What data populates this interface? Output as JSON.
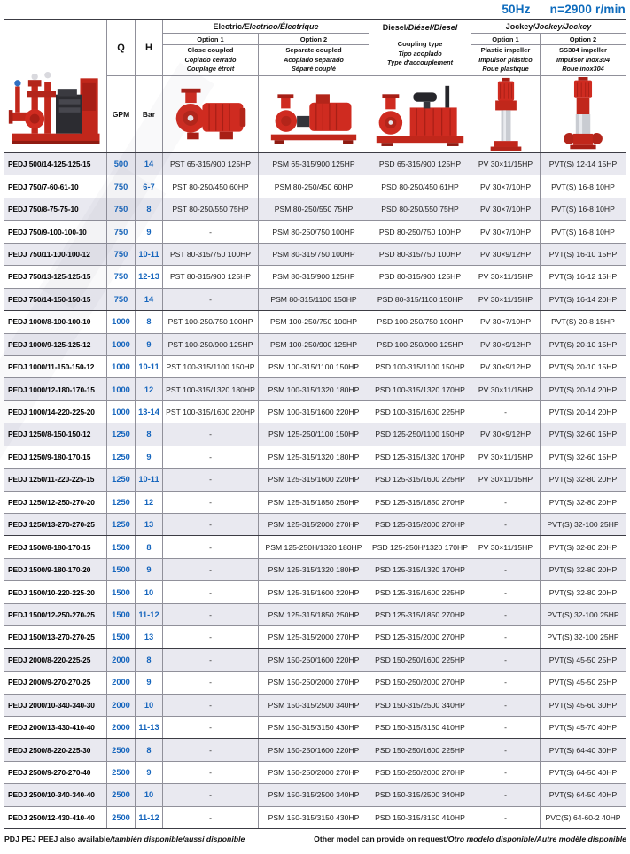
{
  "title_bar": {
    "frequency": "50Hz",
    "speed": "n=2900 r/min"
  },
  "table_header": {
    "q_label": "Q",
    "h_label": "H",
    "q_unit": "GPM",
    "h_unit": "Bar",
    "electric": {
      "title_main": "Electric",
      "title_rest": "/Electrico/Électrique",
      "option1_label": "Option 1",
      "option2_label": "Option 2",
      "option1_desc1": "Close coupled",
      "option1_desc2": "Coplado cerrado",
      "option1_desc3": "Couplage étroit",
      "option2_desc1": "Separate coupled",
      "option2_desc2": "Acoplado separado",
      "option2_desc3": "Séparé couplé"
    },
    "diesel": {
      "title_main": "Diesel",
      "title_rest": "/Diésel/Diesel",
      "desc1": "Coupling type",
      "desc2": "Tipo acoplado",
      "desc3": "Type d'accouplement"
    },
    "jockey": {
      "title_main": "Jockey",
      "title_rest": "/Jockey/Jockey",
      "option1_label": "Option 1",
      "option2_label": "Option 2",
      "option1_desc1": "Plastic impeller",
      "option1_desc2": "Impulsor plástico",
      "option1_desc3": "Roue plastique",
      "option2_desc1": "SS304 impeller",
      "option2_desc2": "Impulsor inox304",
      "option2_desc3": "Roue inox304"
    }
  },
  "images": {
    "package": "diesel-fire-pump-set-photo",
    "electric1": "close-coupled-pump-photo",
    "electric2": "separate-coupled-pump-photo",
    "diesel": "diesel-engine-pump-photo",
    "jockey1": "vertical-jockey-pump-photo",
    "jockey2": "ss304-vertical-jockey-pump-photo"
  },
  "rows": [
    {
      "model": "PEDJ 500/14-125-125-15",
      "q": "500",
      "h": "14",
      "electric1": "PST 65-315/900 125HP",
      "electric2": "PSM 65-315/900 125HP",
      "diesel": "PSD 65-315/900 125HP",
      "jockey1": "PV 30×11/15HP",
      "jockey2": "PVT(S) 12-14 15HP",
      "group_end": true
    },
    {
      "model": "PEDJ 750/7-60-61-10",
      "q": "750",
      "h": "6-7",
      "electric1": "PST 80-250/450 60HP",
      "electric2": "PSM 80-250/450 60HP",
      "diesel": "PSD 80-250/450 61HP",
      "jockey1": "PV 30×7/10HP",
      "jockey2": "PVT(S) 16-8 10HP",
      "group_end": false
    },
    {
      "model": "PEDJ 750/8-75-75-10",
      "q": "750",
      "h": "8",
      "electric1": "PST 80-250/550 75HP",
      "electric2": "PSM 80-250/550 75HP",
      "diesel": "PSD 80-250/550 75HP",
      "jockey1": "PV 30×7/10HP",
      "jockey2": "PVT(S) 16-8 10HP",
      "group_end": false
    },
    {
      "model": "PEDJ 750/9-100-100-10",
      "q": "750",
      "h": "9",
      "electric1": "-",
      "electric2": "PSM 80-250/750 100HP",
      "diesel": "PSD 80-250/750 100HP",
      "jockey1": "PV 30×7/10HP",
      "jockey2": "PVT(S) 16-8 10HP",
      "group_end": false
    },
    {
      "model": "PEDJ 750/11-100-100-12",
      "q": "750",
      "h": "10-11",
      "electric1": "PST 80-315/750 100HP",
      "electric2": "PSM 80-315/750 100HP",
      "diesel": "PSD 80-315/750 100HP",
      "jockey1": "PV 30×9/12HP",
      "jockey2": "PVT(S) 16-10 15HP",
      "group_end": false
    },
    {
      "model": "PEDJ 750/13-125-125-15",
      "q": "750",
      "h": "12-13",
      "electric1": "PST 80-315/900 125HP",
      "electric2": "PSM 80-315/900 125HP",
      "diesel": "PSD 80-315/900 125HP",
      "jockey1": "PV 30×11/15HP",
      "jockey2": "PVT(S) 16-12 15HP",
      "group_end": false
    },
    {
      "model": "PEDJ 750/14-150-150-15",
      "q": "750",
      "h": "14",
      "electric1": "-",
      "electric2": "PSM 80-315/1100 150HP",
      "diesel": "PSD 80-315/1100 150HP",
      "jockey1": "PV 30×11/15HP",
      "jockey2": "PVT(S) 16-14 20HP",
      "group_end": true
    },
    {
      "model": "PEDJ 1000/8-100-100-10",
      "q": "1000",
      "h": "8",
      "electric1": "PST 100-250/750 100HP",
      "electric2": "PSM 100-250/750 100HP",
      "diesel": "PSD 100-250/750 100HP",
      "jockey1": "PV 30×7/10HP",
      "jockey2": "PVT(S) 20-8 15HP",
      "group_end": false
    },
    {
      "model": "PEDJ 1000/9-125-125-12",
      "q": "1000",
      "h": "9",
      "electric1": "PST 100-250/900 125HP",
      "electric2": "PSM 100-250/900 125HP",
      "diesel": "PSD 100-250/900 125HP",
      "jockey1": "PV 30×9/12HP",
      "jockey2": "PVT(S) 20-10 15HP",
      "group_end": false
    },
    {
      "model": "PEDJ 1000/11-150-150-12",
      "q": "1000",
      "h": "10-11",
      "electric1": "PST 100-315/1100 150HP",
      "electric2": "PSM 100-315/1100 150HP",
      "diesel": "PSD 100-315/1100 150HP",
      "jockey1": "PV 30×9/12HP",
      "jockey2": "PVT(S) 20-10 15HP",
      "group_end": false
    },
    {
      "model": "PEDJ 1000/12-180-170-15",
      "q": "1000",
      "h": "12",
      "electric1": "PST 100-315/1320 180HP",
      "electric2": "PSM 100-315/1320 180HP",
      "diesel": "PSD 100-315/1320 170HP",
      "jockey1": "PV 30×11/15HP",
      "jockey2": "PVT(S) 20-14 20HP",
      "group_end": false
    },
    {
      "model": "PEDJ 1000/14-220-225-20",
      "q": "1000",
      "h": "13-14",
      "electric1": "PST 100-315/1600 220HP",
      "electric2": "PSM 100-315/1600 220HP",
      "diesel": "PSD 100-315/1600 225HP",
      "jockey1": "-",
      "jockey2": "PVT(S) 20-14 20HP",
      "group_end": true
    },
    {
      "model": "PEDJ 1250/8-150-150-12",
      "q": "1250",
      "h": "8",
      "electric1": "-",
      "electric2": "PSM 125-250/1100 150HP",
      "diesel": "PSD 125-250/1100 150HP",
      "jockey1": "PV 30×9/12HP",
      "jockey2": "PVT(S) 32-60 15HP",
      "group_end": false
    },
    {
      "model": "PEDJ 1250/9-180-170-15",
      "q": "1250",
      "h": "9",
      "electric1": "-",
      "electric2": "PSM 125-315/1320 180HP",
      "diesel": "PSD 125-315/1320 170HP",
      "jockey1": "PV 30×11/15HP",
      "jockey2": "PVT(S) 32-60 15HP",
      "group_end": false
    },
    {
      "model": "PEDJ 1250/11-220-225-15",
      "q": "1250",
      "h": "10-11",
      "electric1": "-",
      "electric2": "PSM 125-315/1600 220HP",
      "diesel": "PSD 125-315/1600 225HP",
      "jockey1": "PV 30×11/15HP",
      "jockey2": "PVT(S) 32-80 20HP",
      "group_end": false
    },
    {
      "model": "PEDJ 1250/12-250-270-20",
      "q": "1250",
      "h": "12",
      "electric1": "-",
      "electric2": "PSM 125-315/1850 250HP",
      "diesel": "PSD 125-315/1850 270HP",
      "jockey1": "-",
      "jockey2": "PVT(S) 32-80 20HP",
      "group_end": false
    },
    {
      "model": "PEDJ 1250/13-270-270-25",
      "q": "1250",
      "h": "13",
      "electric1": "-",
      "electric2": "PSM 125-315/2000 270HP",
      "diesel": "PSD 125-315/2000 270HP",
      "jockey1": "-",
      "jockey2": "PVT(S) 32-100 25HP",
      "group_end": true
    },
    {
      "model": "PEDJ 1500/8-180-170-15",
      "q": "1500",
      "h": "8",
      "electric1": "-",
      "electric2": "PSM 125-250H/1320 180HP",
      "diesel": "PSD 125-250H/1320 170HP",
      "jockey1": "PV 30×11/15HP",
      "jockey2": "PVT(S) 32-80 20HP",
      "group_end": false
    },
    {
      "model": "PEDJ 1500/9-180-170-20",
      "q": "1500",
      "h": "9",
      "electric1": "-",
      "electric2": "PSM 125-315/1320 180HP",
      "diesel": "PSD 125-315/1320 170HP",
      "jockey1": "-",
      "jockey2": "PVT(S) 32-80 20HP",
      "group_end": false
    },
    {
      "model": "PEDJ 1500/10-220-225-20",
      "q": "1500",
      "h": "10",
      "electric1": "-",
      "electric2": "PSM 125-315/1600 220HP",
      "diesel": "PSD 125-315/1600 225HP",
      "jockey1": "-",
      "jockey2": "PVT(S) 32-80 20HP",
      "group_end": false
    },
    {
      "model": "PEDJ 1500/12-250-270-25",
      "q": "1500",
      "h": "11-12",
      "electric1": "-",
      "electric2": "PSM 125-315/1850 250HP",
      "diesel": "PSD 125-315/1850 270HP",
      "jockey1": "-",
      "jockey2": "PVT(S) 32-100 25HP",
      "group_end": false
    },
    {
      "model": "PEDJ 1500/13-270-270-25",
      "q": "1500",
      "h": "13",
      "electric1": "-",
      "electric2": "PSM 125-315/2000 270HP",
      "diesel": "PSD 125-315/2000 270HP",
      "jockey1": "-",
      "jockey2": "PVT(S) 32-100 25HP",
      "group_end": true
    },
    {
      "model": "PEDJ 2000/8-220-225-25",
      "q": "2000",
      "h": "8",
      "electric1": "-",
      "electric2": "PSM 150-250/1600 220HP",
      "diesel": "PSD 150-250/1600 225HP",
      "jockey1": "-",
      "jockey2": "PVT(S) 45-50 25HP",
      "group_end": false
    },
    {
      "model": "PEDJ 2000/9-270-270-25",
      "q": "2000",
      "h": "9",
      "electric1": "-",
      "electric2": "PSM 150-250/2000 270HP",
      "diesel": "PSD 150-250/2000 270HP",
      "jockey1": "-",
      "jockey2": "PVT(S) 45-50 25HP",
      "group_end": false
    },
    {
      "model": "PEDJ 2000/10-340-340-30",
      "q": "2000",
      "h": "10",
      "electric1": "-",
      "electric2": "PSM 150-315/2500 340HP",
      "diesel": "PSD 150-315/2500 340HP",
      "jockey1": "-",
      "jockey2": "PVT(S) 45-60 30HP",
      "group_end": false
    },
    {
      "model": "PEDJ 2000/13-430-410-40",
      "q": "2000",
      "h": "11-13",
      "electric1": "-",
      "electric2": "PSM 150-315/3150 430HP",
      "diesel": "PSD 150-315/3150 410HP",
      "jockey1": "-",
      "jockey2": "PVT(S) 45-70 40HP",
      "group_end": true
    },
    {
      "model": "PEDJ 2500/8-220-225-30",
      "q": "2500",
      "h": "8",
      "electric1": "-",
      "electric2": "PSM 150-250/1600 220HP",
      "diesel": "PSD 150-250/1600 225HP",
      "jockey1": "-",
      "jockey2": "PVT(S) 64-40 30HP",
      "group_end": false
    },
    {
      "model": "PEDJ 2500/9-270-270-40",
      "q": "2500",
      "h": "9",
      "electric1": "-",
      "electric2": "PSM 150-250/2000 270HP",
      "diesel": "PSD 150-250/2000 270HP",
      "jockey1": "-",
      "jockey2": "PVT(S) 64-50 40HP",
      "group_end": false
    },
    {
      "model": "PEDJ 2500/10-340-340-40",
      "q": "2500",
      "h": "10",
      "electric1": "-",
      "electric2": "PSM 150-315/2500 340HP",
      "diesel": "PSD 150-315/2500 340HP",
      "jockey1": "-",
      "jockey2": "PVT(S) 64-50 40HP",
      "group_end": false
    },
    {
      "model": "PEDJ 2500/12-430-410-40",
      "q": "2500",
      "h": "11-12",
      "electric1": "-",
      "electric2": "PSM 150-315/3150 430HP",
      "diesel": "PSD 150-315/3150 410HP",
      "jockey1": "-",
      "jockey2": "PVC(S) 64-60-2 40HP",
      "group_end": false
    }
  ],
  "footer": {
    "left_main": "PDJ PEJ PEEJ also available",
    "left_alt": "/también disponible/aussi disponible",
    "right_main": "Other model can provide on request",
    "right_alt": "/Otro modelo disponible/Autre modèle disponible"
  },
  "colors": {
    "accent_blue": "#0f6cbd",
    "value_blue": "#1565bd",
    "pump_red": "#cf2b20",
    "alt_row_bg": "#e9e9f0"
  }
}
